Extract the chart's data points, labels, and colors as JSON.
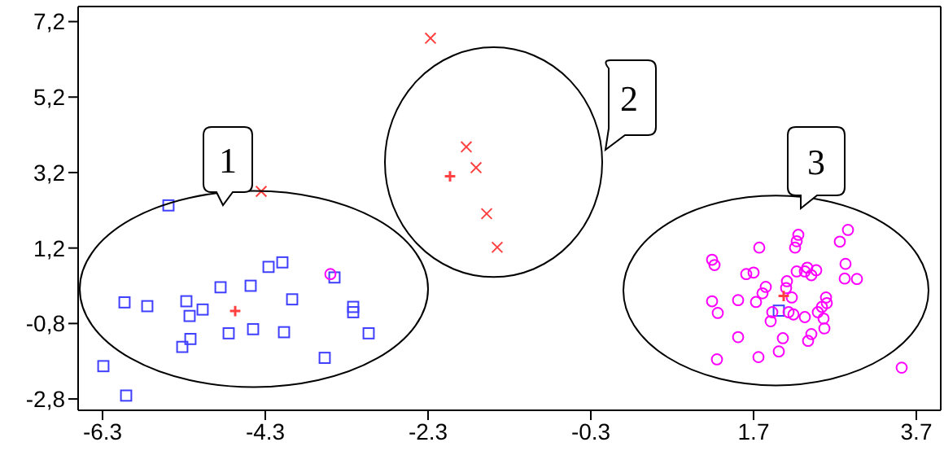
{
  "chart_data": {
    "type": "scatter",
    "xlim": [
      -6.6,
      4.0
    ],
    "ylim": [
      -3.1,
      7.6
    ],
    "xticks": [
      -6.3,
      -4.3,
      -2.3,
      -0.3,
      1.7,
      3.7
    ],
    "yticks": [
      {
        "value": -2.8,
        "label": "-2,8"
      },
      {
        "value": -0.8,
        "label": "-0,8"
      },
      {
        "value": 1.2,
        "label": "1,2"
      },
      {
        "value": 3.2,
        "label": "3,2"
      },
      {
        "value": 5.2,
        "label": "5,2"
      },
      {
        "value": 7.2,
        "label": "7,2"
      }
    ],
    "grid": false,
    "legend": false,
    "annotations": [
      "1",
      "2",
      "3"
    ],
    "series": [
      {
        "color": "#3f3fff",
        "marker": "square",
        "x": [
          -5.49,
          -6.03,
          -5.75,
          -5.27,
          -5.23,
          -5.07,
          -5.22,
          -5.32,
          -4.85,
          -4.75,
          -4.48,
          -4.45,
          -4.26,
          -4.09,
          -3.97,
          -4.07,
          -3.45,
          -3.22,
          -3.22,
          -3.03,
          -3.57,
          -6.29,
          -6.01,
          2.01
        ],
        "values": [
          2.33,
          -0.24,
          -0.34,
          -0.21,
          -0.6,
          -0.43,
          -1.21,
          -1.42,
          0.16,
          -1.06,
          0.2,
          -0.95,
          0.7,
          0.82,
          -0.16,
          -1.03,
          0.42,
          -0.36,
          -0.5,
          -1.06,
          -1.71,
          -1.93,
          -2.71,
          -0.46
        ]
      },
      {
        "color": "#ff4040",
        "marker": "cross",
        "x": [
          -2.27,
          -1.83,
          -1.71,
          -1.58,
          -1.45,
          -4.35
        ],
        "values": [
          6.76,
          3.88,
          3.33,
          2.11,
          1.22,
          2.7
        ]
      },
      {
        "color": "#ff00ff",
        "marker": "circle",
        "x": [
          1.19,
          1.22,
          1.77,
          2.25,
          2.23,
          2.21,
          2.86,
          2.76,
          2.83,
          2.82,
          2.97,
          1.61,
          1.7,
          2.23,
          2.36,
          2.33,
          2.47,
          2.41,
          2.11,
          1.85,
          2.1,
          1.81,
          2.17,
          2.59,
          2.6,
          1.19,
          1.51,
          1.73,
          1.26,
          1.93,
          2.13,
          2.19,
          1.91,
          2.54,
          2.49,
          2.33,
          2.56,
          2.57,
          1.51,
          2.06,
          2.41,
          2.37,
          2.01,
          1.76,
          1.25,
          3.52,
          -3.5
        ],
        "values": [
          0.89,
          0.75,
          1.21,
          1.55,
          1.38,
          1.21,
          1.68,
          1.37,
          0.78,
          0.39,
          0.38,
          0.51,
          0.55,
          0.58,
          0.68,
          0.58,
          0.61,
          0.48,
          0.32,
          0.17,
          0.14,
          0.0,
          -0.11,
          -0.11,
          -0.26,
          -0.21,
          -0.18,
          -0.23,
          -0.52,
          -0.5,
          -0.5,
          -0.56,
          -0.74,
          -0.36,
          -0.5,
          -0.63,
          -0.67,
          -0.93,
          -1.16,
          -1.19,
          -1.08,
          -1.26,
          -1.54,
          -1.69,
          -1.75,
          -1.97,
          0.51
        ]
      },
      {
        "color": "#ff4040",
        "marker": "plus",
        "x": [
          -2.03,
          -4.67,
          2.07
        ],
        "values": [
          3.1,
          -0.47,
          -0.07
        ]
      }
    ]
  }
}
